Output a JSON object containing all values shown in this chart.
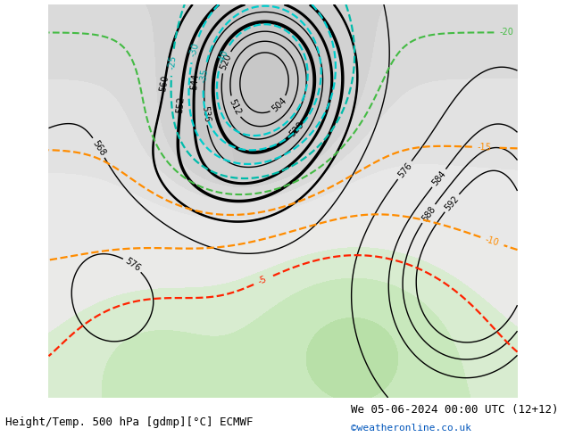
{
  "title_left": "Height/Temp. 500 hPa [gdmp][°C] ECMWF",
  "title_right": "We 05-06-2024 00:00 UTC (12+12)",
  "credit": "©weatheronline.co.uk",
  "figsize": [
    6.34,
    4.9
  ],
  "dpi": 100,
  "font_size_title": 9,
  "font_size_credit": 8
}
